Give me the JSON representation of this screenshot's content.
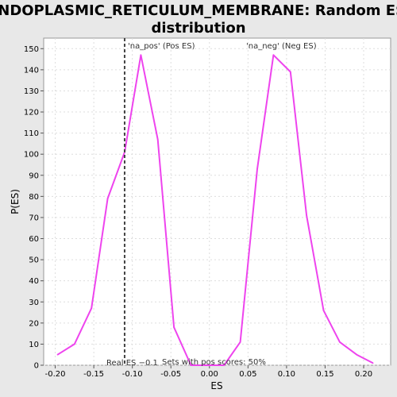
{
  "chart_data": {
    "type": "line",
    "title_lines": [
      "ENDOPLASMIC_RETICULUM_MEMBRANE: Random ES",
      "distribution"
    ],
    "xlabel": "ES",
    "ylabel": "P(ES)",
    "xlim": [
      -0.215,
      0.235
    ],
    "ylim": [
      0,
      155
    ],
    "xticks": [
      -0.2,
      -0.15,
      -0.1,
      -0.05,
      0.0,
      0.05,
      0.1,
      0.15,
      0.2
    ],
    "xtick_labels": [
      "-0.20",
      "-0.15",
      "-0.10",
      "-0.05",
      "0.00",
      "0.05",
      "0.10",
      "0.15",
      "0.20"
    ],
    "yticks": [
      0,
      10,
      20,
      30,
      40,
      50,
      60,
      70,
      80,
      90,
      100,
      110,
      120,
      130,
      140,
      150
    ],
    "ytick_labels": [
      "0",
      "10",
      "20",
      "30",
      "40",
      "50",
      "60",
      "70",
      "80",
      "90",
      "100",
      "110",
      "120",
      "130",
      "140",
      "150"
    ],
    "grid": true,
    "series": [
      {
        "color": "#ee44ee",
        "x": [
          -0.197,
          -0.175,
          -0.153,
          -0.132,
          -0.11,
          -0.089,
          -0.067,
          -0.046,
          -0.024,
          -0.003,
          0.019,
          0.04,
          0.062,
          0.083,
          0.105,
          0.126,
          0.148,
          0.169,
          0.191,
          0.212
        ],
        "y": [
          5,
          10,
          27,
          79,
          101,
          147,
          107,
          18,
          0,
          0,
          0,
          11,
          93,
          147,
          139,
          71,
          26,
          11,
          5,
          1
        ]
      }
    ],
    "real_es": -0.11,
    "real_es_color": "#444444",
    "annotations": {
      "pos_label": "'na_pos' (Pos ES)",
      "pos_color": "#ee3333",
      "neg_label": "'na_neg' (Neg ES)",
      "neg_color": "#3333cc",
      "real_es_label": "Real ES −0.1",
      "sets_label": "Sets with pos scores: 50%"
    }
  }
}
